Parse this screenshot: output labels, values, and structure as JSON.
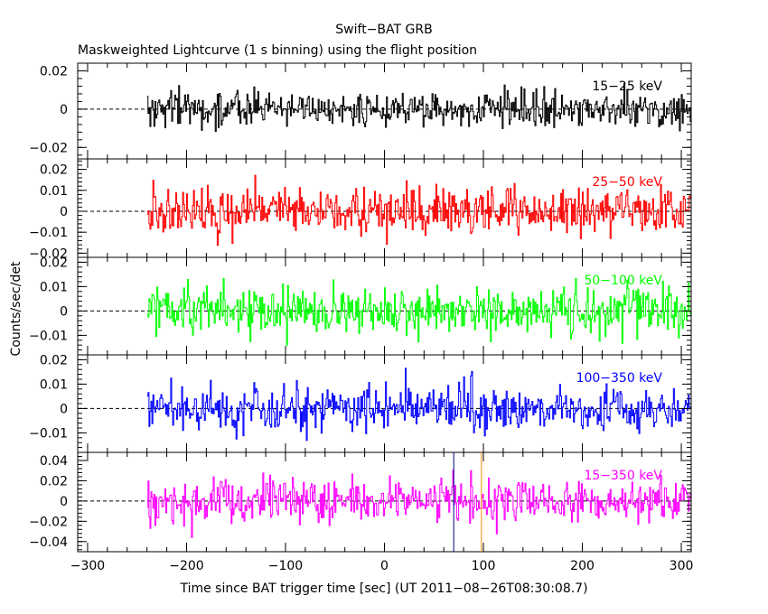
{
  "chart_data": {
    "type": "line",
    "title": "Swift−BAT GRB",
    "subtitle": "Maskweighted Lightcurve (1 s binning) using the flight position",
    "xlabel": "Time since BAT trigger time [sec] (UT 2011−08−26T08:30:08.7)",
    "ylabel": "Counts/sec/det",
    "xlim": [
      -310,
      310
    ],
    "x_ticks": [
      -300,
      -200,
      -100,
      0,
      100,
      200,
      300
    ],
    "x_tick_labels": [
      "−300",
      "−200",
      "−100",
      "0",
      "100",
      "200",
      "300"
    ],
    "data_x_range": [
      -240,
      310
    ],
    "bin_size_sec": 1,
    "vertical_markers": [
      {
        "x": 70,
        "color": "#000080"
      },
      {
        "x": 98,
        "color": "#ff8c00"
      }
    ],
    "panels": [
      {
        "band": "15−25 keV",
        "color": "#000000",
        "ylim": [
          -0.026,
          0.024
        ],
        "y_ticks": [
          -0.02,
          0,
          0.02
        ],
        "y_tick_labels": [
          "−0.02",
          "0",
          "0.02"
        ],
        "noise_sigma": 0.0045
      },
      {
        "band": "25−50 keV",
        "color": "#ff0000",
        "ylim": [
          -0.022,
          0.025
        ],
        "y_ticks": [
          -0.02,
          -0.01,
          0,
          0.01,
          0.02
        ],
        "y_tick_labels": [
          "−0.02",
          "−0.01",
          "0",
          "0.01",
          "0.02"
        ],
        "noise_sigma": 0.0055
      },
      {
        "band": "50−100 keV",
        "color": "#00ff00",
        "ylim": [
          -0.018,
          0.022
        ],
        "y_ticks": [
          -0.01,
          0,
          0.01,
          0.02
        ],
        "y_tick_labels": [
          "−0.01",
          "0",
          "0.01",
          "0.02"
        ],
        "noise_sigma": 0.0048
      },
      {
        "band": "100−350 keV",
        "color": "#0000ff",
        "ylim": [
          -0.018,
          0.022
        ],
        "y_ticks": [
          -0.01,
          0,
          0.01,
          0.02
        ],
        "y_tick_labels": [
          "−0.01",
          "0",
          "0.01",
          "0.02"
        ],
        "noise_sigma": 0.0045
      },
      {
        "band": "15−350 keV",
        "color": "#ff00ff",
        "ylim": [
          -0.05,
          0.048
        ],
        "y_ticks": [
          -0.04,
          -0.02,
          0,
          0.02,
          0.04
        ],
        "y_tick_labels": [
          "−0.04",
          "−0.02",
          "0",
          "0.02",
          "0.04"
        ],
        "noise_sigma": 0.0105
      }
    ]
  }
}
